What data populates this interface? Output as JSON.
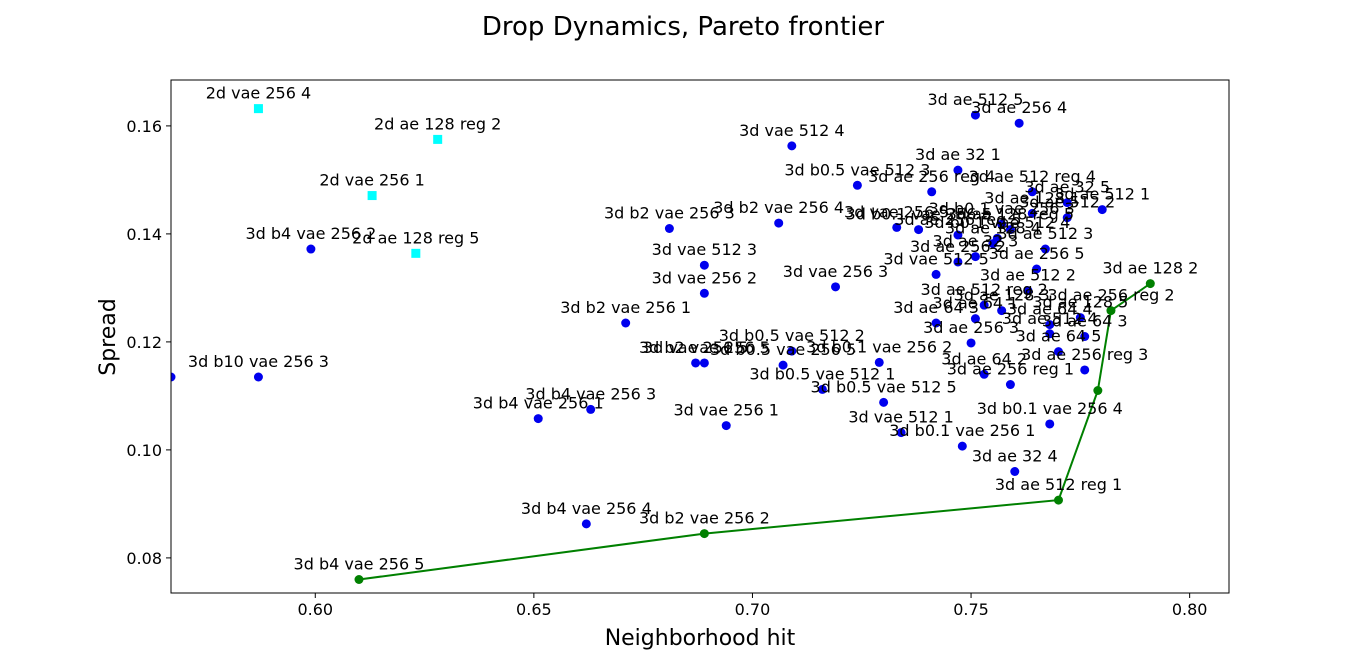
{
  "chart_data": {
    "type": "scatter",
    "title": "Drop Dynamics, Pareto frontier",
    "xlabel": "Neighborhood hit",
    "ylabel": "Spread",
    "xlim": [
      0.567,
      0.809
    ],
    "ylim": [
      0.0735,
      0.1685
    ],
    "xticks": [
      {
        "value": 0.6,
        "label": "0.60"
      },
      {
        "value": 0.65,
        "label": "0.65"
      },
      {
        "value": 0.7,
        "label": "0.70"
      },
      {
        "value": 0.75,
        "label": "0.75"
      },
      {
        "value": 0.8,
        "label": "0.80"
      }
    ],
    "yticks": [
      {
        "value": 0.08,
        "label": "0.08"
      },
      {
        "value": 0.1,
        "label": "0.10"
      },
      {
        "value": 0.12,
        "label": "0.12"
      },
      {
        "value": 0.14,
        "label": "0.14"
      },
      {
        "value": 0.16,
        "label": "0.16"
      }
    ],
    "grid": false,
    "colors": {
      "blue": "#0000ee",
      "cyan": "#00ffff",
      "green": "#008000"
    },
    "series": [
      {
        "marker": "square",
        "color": "#00ffff",
        "points": [
          {
            "x": 0.587,
            "y": 0.1632,
            "label": "2d vae 256 4"
          },
          {
            "x": 0.628,
            "y": 0.1575,
            "label": "2d ae 128 reg 2"
          },
          {
            "x": 0.613,
            "y": 0.1471,
            "label": "2d vae 256 1"
          },
          {
            "x": 0.623,
            "y": 0.1364,
            "label": "2d ae 128 reg 5"
          }
        ]
      },
      {
        "marker": "circle",
        "color": "#0000ee",
        "points": [
          {
            "x": 0.751,
            "y": 0.162,
            "label": "3d ae 512 5"
          },
          {
            "x": 0.761,
            "y": 0.1605,
            "label": "3d ae 256 4"
          },
          {
            "x": 0.709,
            "y": 0.1563,
            "label": "3d vae 512 4"
          },
          {
            "x": 0.747,
            "y": 0.1518,
            "label": "3d ae 32 1"
          },
          {
            "x": 0.724,
            "y": 0.149,
            "label": "3d b0.5 vae 512 3"
          },
          {
            "x": 0.741,
            "y": 0.1478,
            "label": "3d ae 256 reg 4"
          },
          {
            "x": 0.764,
            "y": 0.1478,
            "label": "3d ae 512 reg 4"
          },
          {
            "x": 0.772,
            "y": 0.1458,
            "label": "3d ae 32 5"
          },
          {
            "x": 0.78,
            "y": 0.1445,
            "label": "3d ae 512 1"
          },
          {
            "x": 0.764,
            "y": 0.1438,
            "label": "3d ae 128 1"
          },
          {
            "x": 0.772,
            "y": 0.143,
            "label": "3d ae 512 2"
          },
          {
            "x": 0.757,
            "y": 0.1418,
            "label": "3d b0.1 vae 256 3"
          },
          {
            "x": 0.738,
            "y": 0.1408,
            "label": "3d b0.1 vae 256 5"
          },
          {
            "x": 0.733,
            "y": 0.1412,
            "label": "3d vae 256 5"
          },
          {
            "x": 0.747,
            "y": 0.1398,
            "label": "3d ae 256 reg 5"
          },
          {
            "x": 0.756,
            "y": 0.1392,
            "label": "3d b0.1 vae 512 4"
          },
          {
            "x": 0.759,
            "y": 0.1408,
            "label": "3d ae 128 reg 5"
          },
          {
            "x": 0.755,
            "y": 0.1382,
            "label": "3d ae 128 4"
          },
          {
            "x": 0.767,
            "y": 0.1372,
            "label": "3d ae 512 3"
          },
          {
            "x": 0.751,
            "y": 0.1358,
            "label": "3d ae 32 3"
          },
          {
            "x": 0.747,
            "y": 0.1348,
            "label": "3d ae 256 2"
          },
          {
            "x": 0.765,
            "y": 0.1335,
            "label": "3d ae 256 5"
          },
          {
            "x": 0.742,
            "y": 0.1325,
            "label": "3d vae 512 5"
          },
          {
            "x": 0.763,
            "y": 0.1295,
            "label": "3d ae 512 2"
          },
          {
            "x": 0.753,
            "y": 0.1268,
            "label": "3d ae 512 reg 2"
          },
          {
            "x": 0.757,
            "y": 0.1258,
            "label": "3d ae 128 3"
          },
          {
            "x": 0.751,
            "y": 0.1243,
            "label": "3d ae 64 1"
          },
          {
            "x": 0.742,
            "y": 0.1235,
            "label": "3d ae 64 3"
          },
          {
            "x": 0.775,
            "y": 0.1245,
            "label": "3d ae 128 5"
          },
          {
            "x": 0.768,
            "y": 0.1232,
            "label": "3d ae 64 4"
          },
          {
            "x": 0.768,
            "y": 0.1215,
            "label": "3d ae 512 4"
          },
          {
            "x": 0.776,
            "y": 0.121,
            "label": "3d ae 64 3"
          },
          {
            "x": 0.75,
            "y": 0.1198,
            "label": "3d ae 256 3"
          },
          {
            "x": 0.77,
            "y": 0.1182,
            "label": "3d ae 64 5"
          },
          {
            "x": 0.753,
            "y": 0.114,
            "label": "3d ae 64 2"
          },
          {
            "x": 0.759,
            "y": 0.1121,
            "label": "3d ae 256 reg 1"
          },
          {
            "x": 0.776,
            "y": 0.1148,
            "label": "3d ae 256 reg 3"
          },
          {
            "x": 0.689,
            "y": 0.1342,
            "label": "3d vae 512 3"
          },
          {
            "x": 0.689,
            "y": 0.129,
            "label": "3d vae 256 2"
          },
          {
            "x": 0.719,
            "y": 0.1302,
            "label": "3d vae 256 3"
          },
          {
            "x": 0.681,
            "y": 0.141,
            "label": "3d b2 vae 256 3"
          },
          {
            "x": 0.706,
            "y": 0.142,
            "label": "3d b2 vae 256 4"
          },
          {
            "x": 0.599,
            "y": 0.1372,
            "label": "3d b4 vae 256 2"
          },
          {
            "x": 0.671,
            "y": 0.1235,
            "label": "3d b2 vae 256 1"
          },
          {
            "x": 0.709,
            "y": 0.1183,
            "label": "3d b0.5 vae 512 2"
          },
          {
            "x": 0.687,
            "y": 0.1161,
            "label": "3d vae 256 5"
          },
          {
            "x": 0.689,
            "y": 0.1161,
            "label": "3d b2 vae 256 5"
          },
          {
            "x": 0.707,
            "y": 0.1157,
            "label": "3d b0.5 vae 256 5"
          },
          {
            "x": 0.729,
            "y": 0.1162,
            "label": "3d b0.1 vae 256 2"
          },
          {
            "x": 0.716,
            "y": 0.1112,
            "label": "3d b0.5 vae 512 1"
          },
          {
            "x": 0.73,
            "y": 0.1088,
            "label": "3d b0.5 vae 512 5"
          },
          {
            "x": 0.587,
            "y": 0.1135,
            "label": "3d b10 vae 256 3"
          },
          {
            "x": 0.567,
            "y": 0.1135,
            "label": ""
          },
          {
            "x": 0.663,
            "y": 0.1075,
            "label": "3d b4 vae 256 3"
          },
          {
            "x": 0.651,
            "y": 0.1058,
            "label": "3d b4 vae 256 1"
          },
          {
            "x": 0.694,
            "y": 0.1045,
            "label": "3d vae 256 1"
          },
          {
            "x": 0.734,
            "y": 0.1032,
            "label": "3d vae 512 1"
          },
          {
            "x": 0.748,
            "y": 0.1007,
            "label": "3d b0.1 vae 256 1"
          },
          {
            "x": 0.768,
            "y": 0.1048,
            "label": "3d b0.1 vae 256 4"
          },
          {
            "x": 0.76,
            "y": 0.096,
            "label": "3d ae 32 4"
          },
          {
            "x": 0.662,
            "y": 0.0863,
            "label": "3d b4 vae 256 4"
          }
        ]
      }
    ],
    "frontier": {
      "color": "#008000",
      "points": [
        {
          "x": 0.61,
          "y": 0.076,
          "label": "3d b4 vae 256 5"
        },
        {
          "x": 0.689,
          "y": 0.0845,
          "label": "3d b2 vae 256 2"
        },
        {
          "x": 0.77,
          "y": 0.0907,
          "label": "3d ae 512 reg 1"
        },
        {
          "x": 0.779,
          "y": 0.111,
          "label": ""
        },
        {
          "x": 0.782,
          "y": 0.1258,
          "label": "3d ae 256 reg 2"
        },
        {
          "x": 0.791,
          "y": 0.1308,
          "label": "3d ae 128 2"
        }
      ]
    }
  }
}
